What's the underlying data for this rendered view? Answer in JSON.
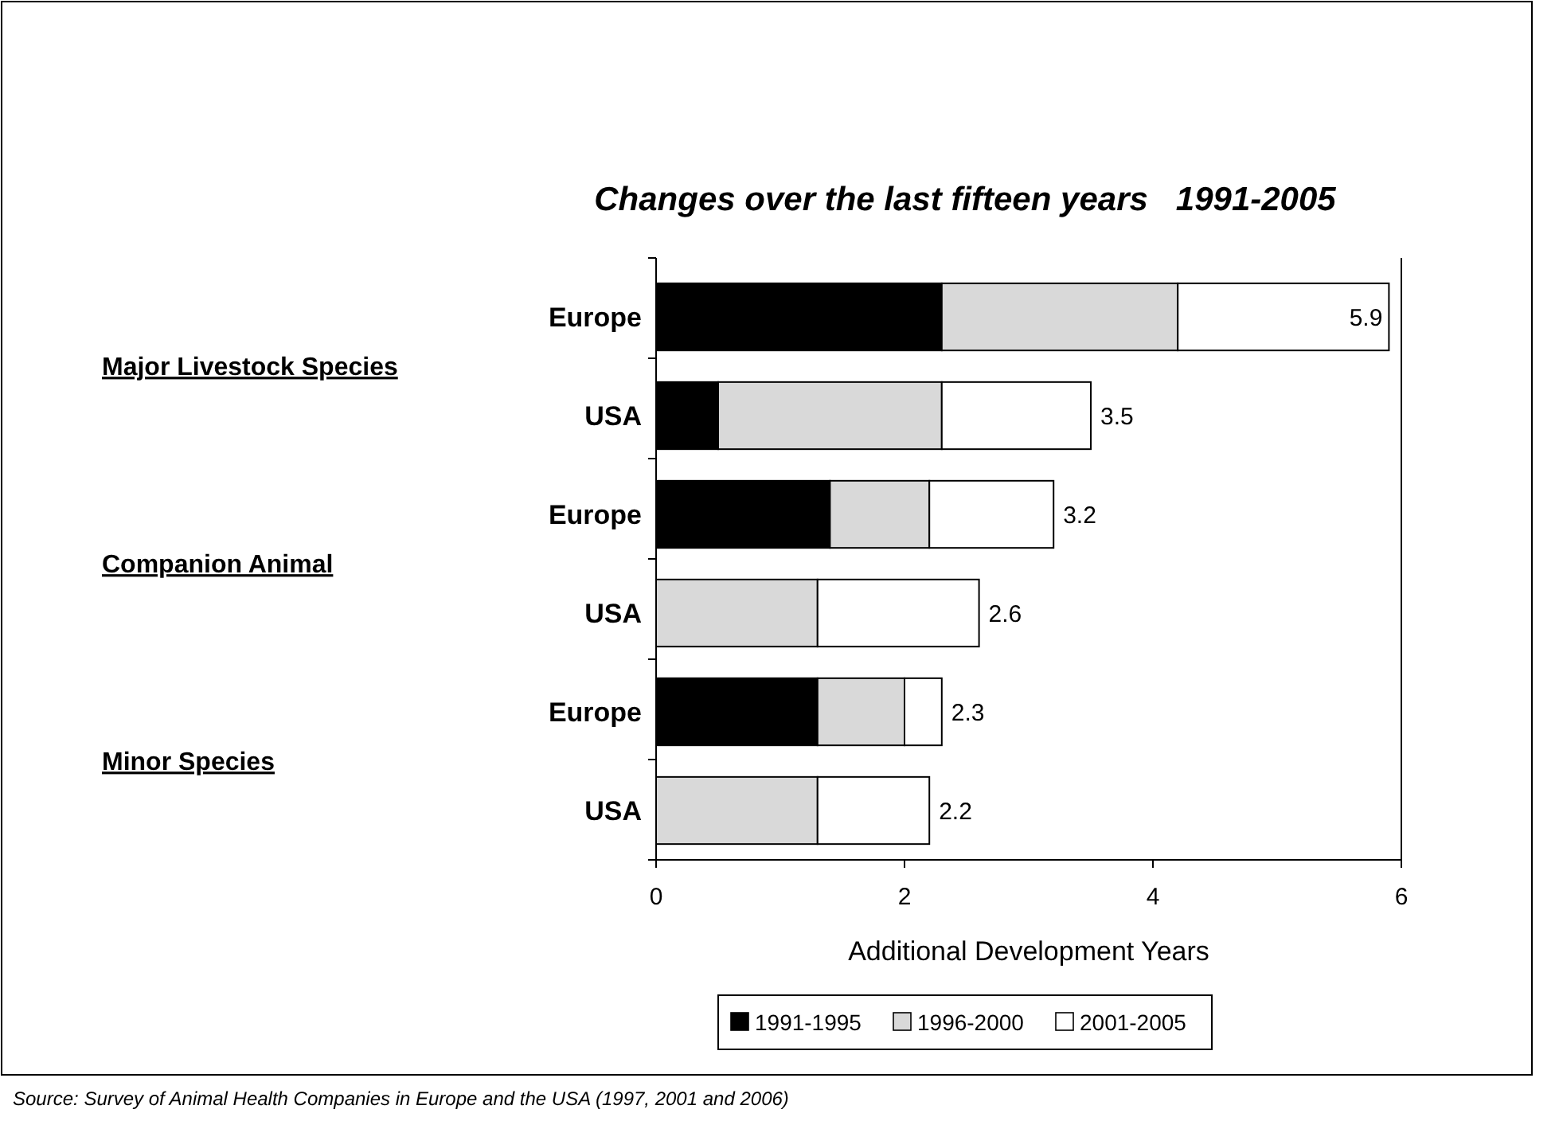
{
  "chart_data": {
    "type": "bar",
    "orientation": "horizontal",
    "stacked": true,
    "title": "Changes over the last fifteen years   1991-2005",
    "xlabel": "Additional Development Years",
    "categories": [
      "Europe",
      "USA",
      "Europe",
      "USA",
      "Europe",
      "USA"
    ],
    "series": [
      {
        "name": "1991-1995",
        "color": "#000000",
        "values": [
          2.3,
          0.5,
          1.4,
          0,
          1.3,
          0
        ]
      },
      {
        "name": "1996-2000",
        "color": "#d9d9d9",
        "values": [
          1.9,
          1.8,
          0.8,
          1.3,
          0.7,
          1.3
        ]
      },
      {
        "name": "2001-2005",
        "color": "#ffffff",
        "values": [
          1.7,
          1.2,
          1.0,
          1.3,
          0.3,
          0.9
        ]
      }
    ],
    "totals": [
      "5.9",
      "3.5",
      "3.2",
      "2.6",
      "2.3",
      "2.2"
    ],
    "xlim": [
      0,
      6
    ],
    "xticks": [
      0,
      2,
      4,
      6
    ],
    "legend": "bottom",
    "annotations": [
      "Major Livestock Species",
      "Companion Animal",
      "Minor Species",
      "Source: Survey of Animal Health Companies in Europe and the USA (1997, 2001 and 2006)"
    ]
  }
}
